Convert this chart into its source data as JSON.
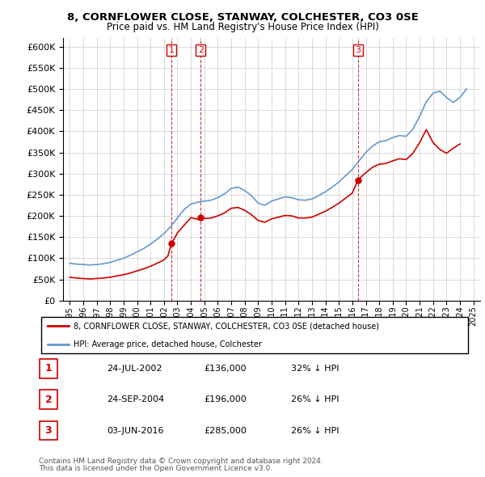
{
  "title": "8, CORNFLOWER CLOSE, STANWAY, COLCHESTER, CO3 0SE",
  "subtitle": "Price paid vs. HM Land Registry's House Price Index (HPI)",
  "red_label": "8, CORNFLOWER CLOSE, STANWAY, COLCHESTER, CO3 0SE (detached house)",
  "blue_label": "HPI: Average price, detached house, Colchester",
  "footnote1": "Contains HM Land Registry data © Crown copyright and database right 2024.",
  "footnote2": "This data is licensed under the Open Government Licence v3.0.",
  "transactions": [
    {
      "num": 1,
      "date": "24-JUL-2002",
      "price": "£136,000",
      "pct": "32% ↓ HPI",
      "year": 2002.56
    },
    {
      "num": 2,
      "date": "24-SEP-2004",
      "price": "£196,000",
      "pct": "26% ↓ HPI",
      "year": 2004.73
    },
    {
      "num": 3,
      "date": "03-JUN-2016",
      "price": "£285,000",
      "pct": "26% ↓ HPI",
      "year": 2016.42
    }
  ],
  "red_color": "#cc0000",
  "blue_color": "#6699cc",
  "vline_color": "#cc0000",
  "box_color": "#cc0000",
  "background_color": "#ffffff",
  "grid_color": "#cccccc",
  "ylim_min": 0,
  "ylim_max": 620000,
  "xlim_min": 1994.5,
  "xlim_max": 2025.5
}
